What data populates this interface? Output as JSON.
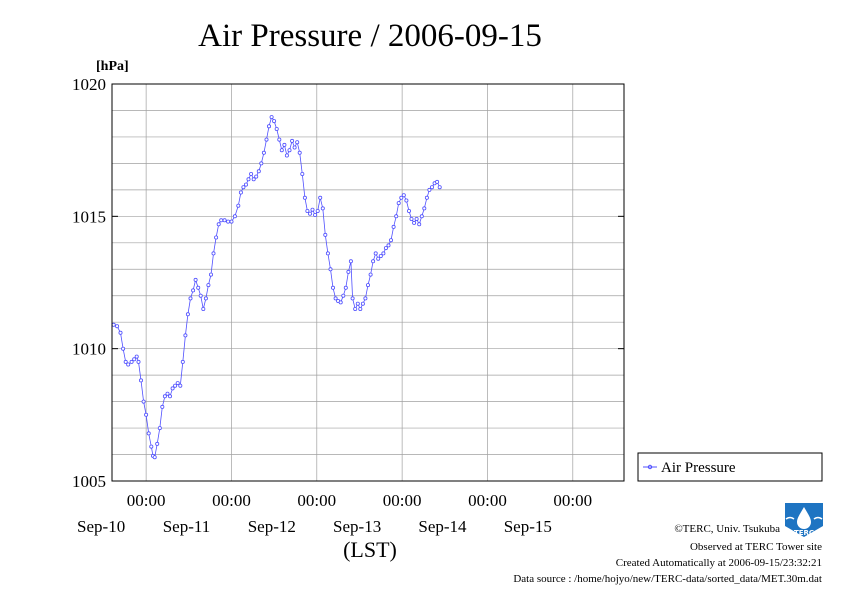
{
  "colors": {
    "series": "#5050ff",
    "grid": "#a0a0a0",
    "axis": "#000000",
    "logo": "#1e74c2"
  },
  "chart_data": {
    "type": "line",
    "title": "Air Pressure / 2006-09-15",
    "yunit": "[hPa]",
    "xlabel": "(LST)",
    "ylim": [
      1005,
      1020
    ],
    "yticks": [
      1005,
      1010,
      1015,
      1020
    ],
    "x_unit": "days since 2006-09-09 00:00 LST",
    "xlim": [
      0.6,
      6.6
    ],
    "x_ticks": [
      {
        "x": 1,
        "time": "00:00",
        "date": "Sep-10"
      },
      {
        "x": 2,
        "time": "00:00",
        "date": "Sep-11"
      },
      {
        "x": 3,
        "time": "00:00",
        "date": "Sep-12"
      },
      {
        "x": 4,
        "time": "00:00",
        "date": "Sep-13"
      },
      {
        "x": 5,
        "time": "00:00",
        "date": "Sep-14"
      },
      {
        "x": 6,
        "time": "00:00",
        "date": "Sep-15"
      }
    ],
    "grid": true,
    "legend_position": "right",
    "series": [
      {
        "name": "Air Pressure",
        "points": [
          [
            0.62,
            1010.9
          ],
          [
            0.66,
            1010.85
          ],
          [
            0.7,
            1010.6
          ],
          [
            0.73,
            1010.0
          ],
          [
            0.76,
            1009.5
          ],
          [
            0.79,
            1009.4
          ],
          [
            0.83,
            1009.5
          ],
          [
            0.86,
            1009.6
          ],
          [
            0.89,
            1009.7
          ],
          [
            0.91,
            1009.5
          ],
          [
            0.94,
            1008.8
          ],
          [
            0.97,
            1008.0
          ],
          [
            1.0,
            1007.5
          ],
          [
            1.03,
            1006.8
          ],
          [
            1.06,
            1006.3
          ],
          [
            1.08,
            1005.95
          ],
          [
            1.1,
            1005.9
          ],
          [
            1.13,
            1006.4
          ],
          [
            1.16,
            1007.0
          ],
          [
            1.19,
            1007.8
          ],
          [
            1.22,
            1008.2
          ],
          [
            1.25,
            1008.3
          ],
          [
            1.28,
            1008.2
          ],
          [
            1.31,
            1008.5
          ],
          [
            1.34,
            1008.6
          ],
          [
            1.37,
            1008.7
          ],
          [
            1.4,
            1008.6
          ],
          [
            1.43,
            1009.5
          ],
          [
            1.46,
            1010.5
          ],
          [
            1.49,
            1011.3
          ],
          [
            1.52,
            1011.9
          ],
          [
            1.55,
            1012.2
          ],
          [
            1.58,
            1012.6
          ],
          [
            1.61,
            1012.3
          ],
          [
            1.64,
            1012.0
          ],
          [
            1.67,
            1011.5
          ],
          [
            1.7,
            1011.9
          ],
          [
            1.73,
            1012.4
          ],
          [
            1.76,
            1012.8
          ],
          [
            1.79,
            1013.6
          ],
          [
            1.82,
            1014.2
          ],
          [
            1.85,
            1014.7
          ],
          [
            1.88,
            1014.85
          ],
          [
            1.92,
            1014.85
          ],
          [
            1.96,
            1014.8
          ],
          [
            2.0,
            1014.8
          ],
          [
            2.04,
            1015.0
          ],
          [
            2.08,
            1015.4
          ],
          [
            2.11,
            1015.9
          ],
          [
            2.14,
            1016.1
          ],
          [
            2.17,
            1016.2
          ],
          [
            2.2,
            1016.4
          ],
          [
            2.23,
            1016.6
          ],
          [
            2.26,
            1016.4
          ],
          [
            2.29,
            1016.5
          ],
          [
            2.32,
            1016.7
          ],
          [
            2.35,
            1017.0
          ],
          [
            2.38,
            1017.4
          ],
          [
            2.41,
            1017.9
          ],
          [
            2.44,
            1018.4
          ],
          [
            2.47,
            1018.75
          ],
          [
            2.5,
            1018.6
          ],
          [
            2.53,
            1018.3
          ],
          [
            2.56,
            1017.9
          ],
          [
            2.59,
            1017.5
          ],
          [
            2.62,
            1017.7
          ],
          [
            2.65,
            1017.3
          ],
          [
            2.68,
            1017.5
          ],
          [
            2.71,
            1017.85
          ],
          [
            2.74,
            1017.6
          ],
          [
            2.77,
            1017.8
          ],
          [
            2.8,
            1017.4
          ],
          [
            2.83,
            1016.6
          ],
          [
            2.86,
            1015.7
          ],
          [
            2.89,
            1015.2
          ],
          [
            2.92,
            1015.1
          ],
          [
            2.95,
            1015.25
          ],
          [
            2.98,
            1015.05
          ],
          [
            3.01,
            1015.2
          ],
          [
            3.04,
            1015.7
          ],
          [
            3.07,
            1015.3
          ],
          [
            3.1,
            1014.3
          ],
          [
            3.13,
            1013.6
          ],
          [
            3.16,
            1013.0
          ],
          [
            3.19,
            1012.3
          ],
          [
            3.22,
            1011.9
          ],
          [
            3.25,
            1011.8
          ],
          [
            3.28,
            1011.75
          ],
          [
            3.31,
            1012.0
          ],
          [
            3.34,
            1012.3
          ],
          [
            3.37,
            1012.9
          ],
          [
            3.4,
            1013.3
          ],
          [
            3.42,
            1011.9
          ],
          [
            3.45,
            1011.5
          ],
          [
            3.48,
            1011.7
          ],
          [
            3.51,
            1011.5
          ],
          [
            3.54,
            1011.7
          ],
          [
            3.57,
            1011.9
          ],
          [
            3.6,
            1012.4
          ],
          [
            3.63,
            1012.8
          ],
          [
            3.66,
            1013.3
          ],
          [
            3.69,
            1013.6
          ],
          [
            3.72,
            1013.4
          ],
          [
            3.75,
            1013.5
          ],
          [
            3.78,
            1013.6
          ],
          [
            3.81,
            1013.8
          ],
          [
            3.84,
            1013.9
          ],
          [
            3.87,
            1014.1
          ],
          [
            3.9,
            1014.6
          ],
          [
            3.93,
            1015.0
          ],
          [
            3.96,
            1015.5
          ],
          [
            3.99,
            1015.7
          ],
          [
            4.02,
            1015.8
          ],
          [
            4.05,
            1015.6
          ],
          [
            4.08,
            1015.2
          ],
          [
            4.11,
            1014.9
          ],
          [
            4.14,
            1014.75
          ],
          [
            4.17,
            1014.9
          ],
          [
            4.2,
            1014.7
          ],
          [
            4.23,
            1015.0
          ],
          [
            4.26,
            1015.3
          ],
          [
            4.29,
            1015.7
          ],
          [
            4.32,
            1016.0
          ],
          [
            4.35,
            1016.1
          ],
          [
            4.38,
            1016.25
          ],
          [
            4.41,
            1016.3
          ],
          [
            4.44,
            1016.1
          ]
        ]
      }
    ]
  },
  "footer": {
    "copyright": "©TERC, Univ. Tsukuba",
    "observed": "Observed at TERC Tower site",
    "created": "Created Automatically at 2006-09-15/23:32:21",
    "source": "Data source : /home/hojyo/new/TERC-data/sorted_data/MET.30m.dat",
    "logo_text": "TERC"
  }
}
